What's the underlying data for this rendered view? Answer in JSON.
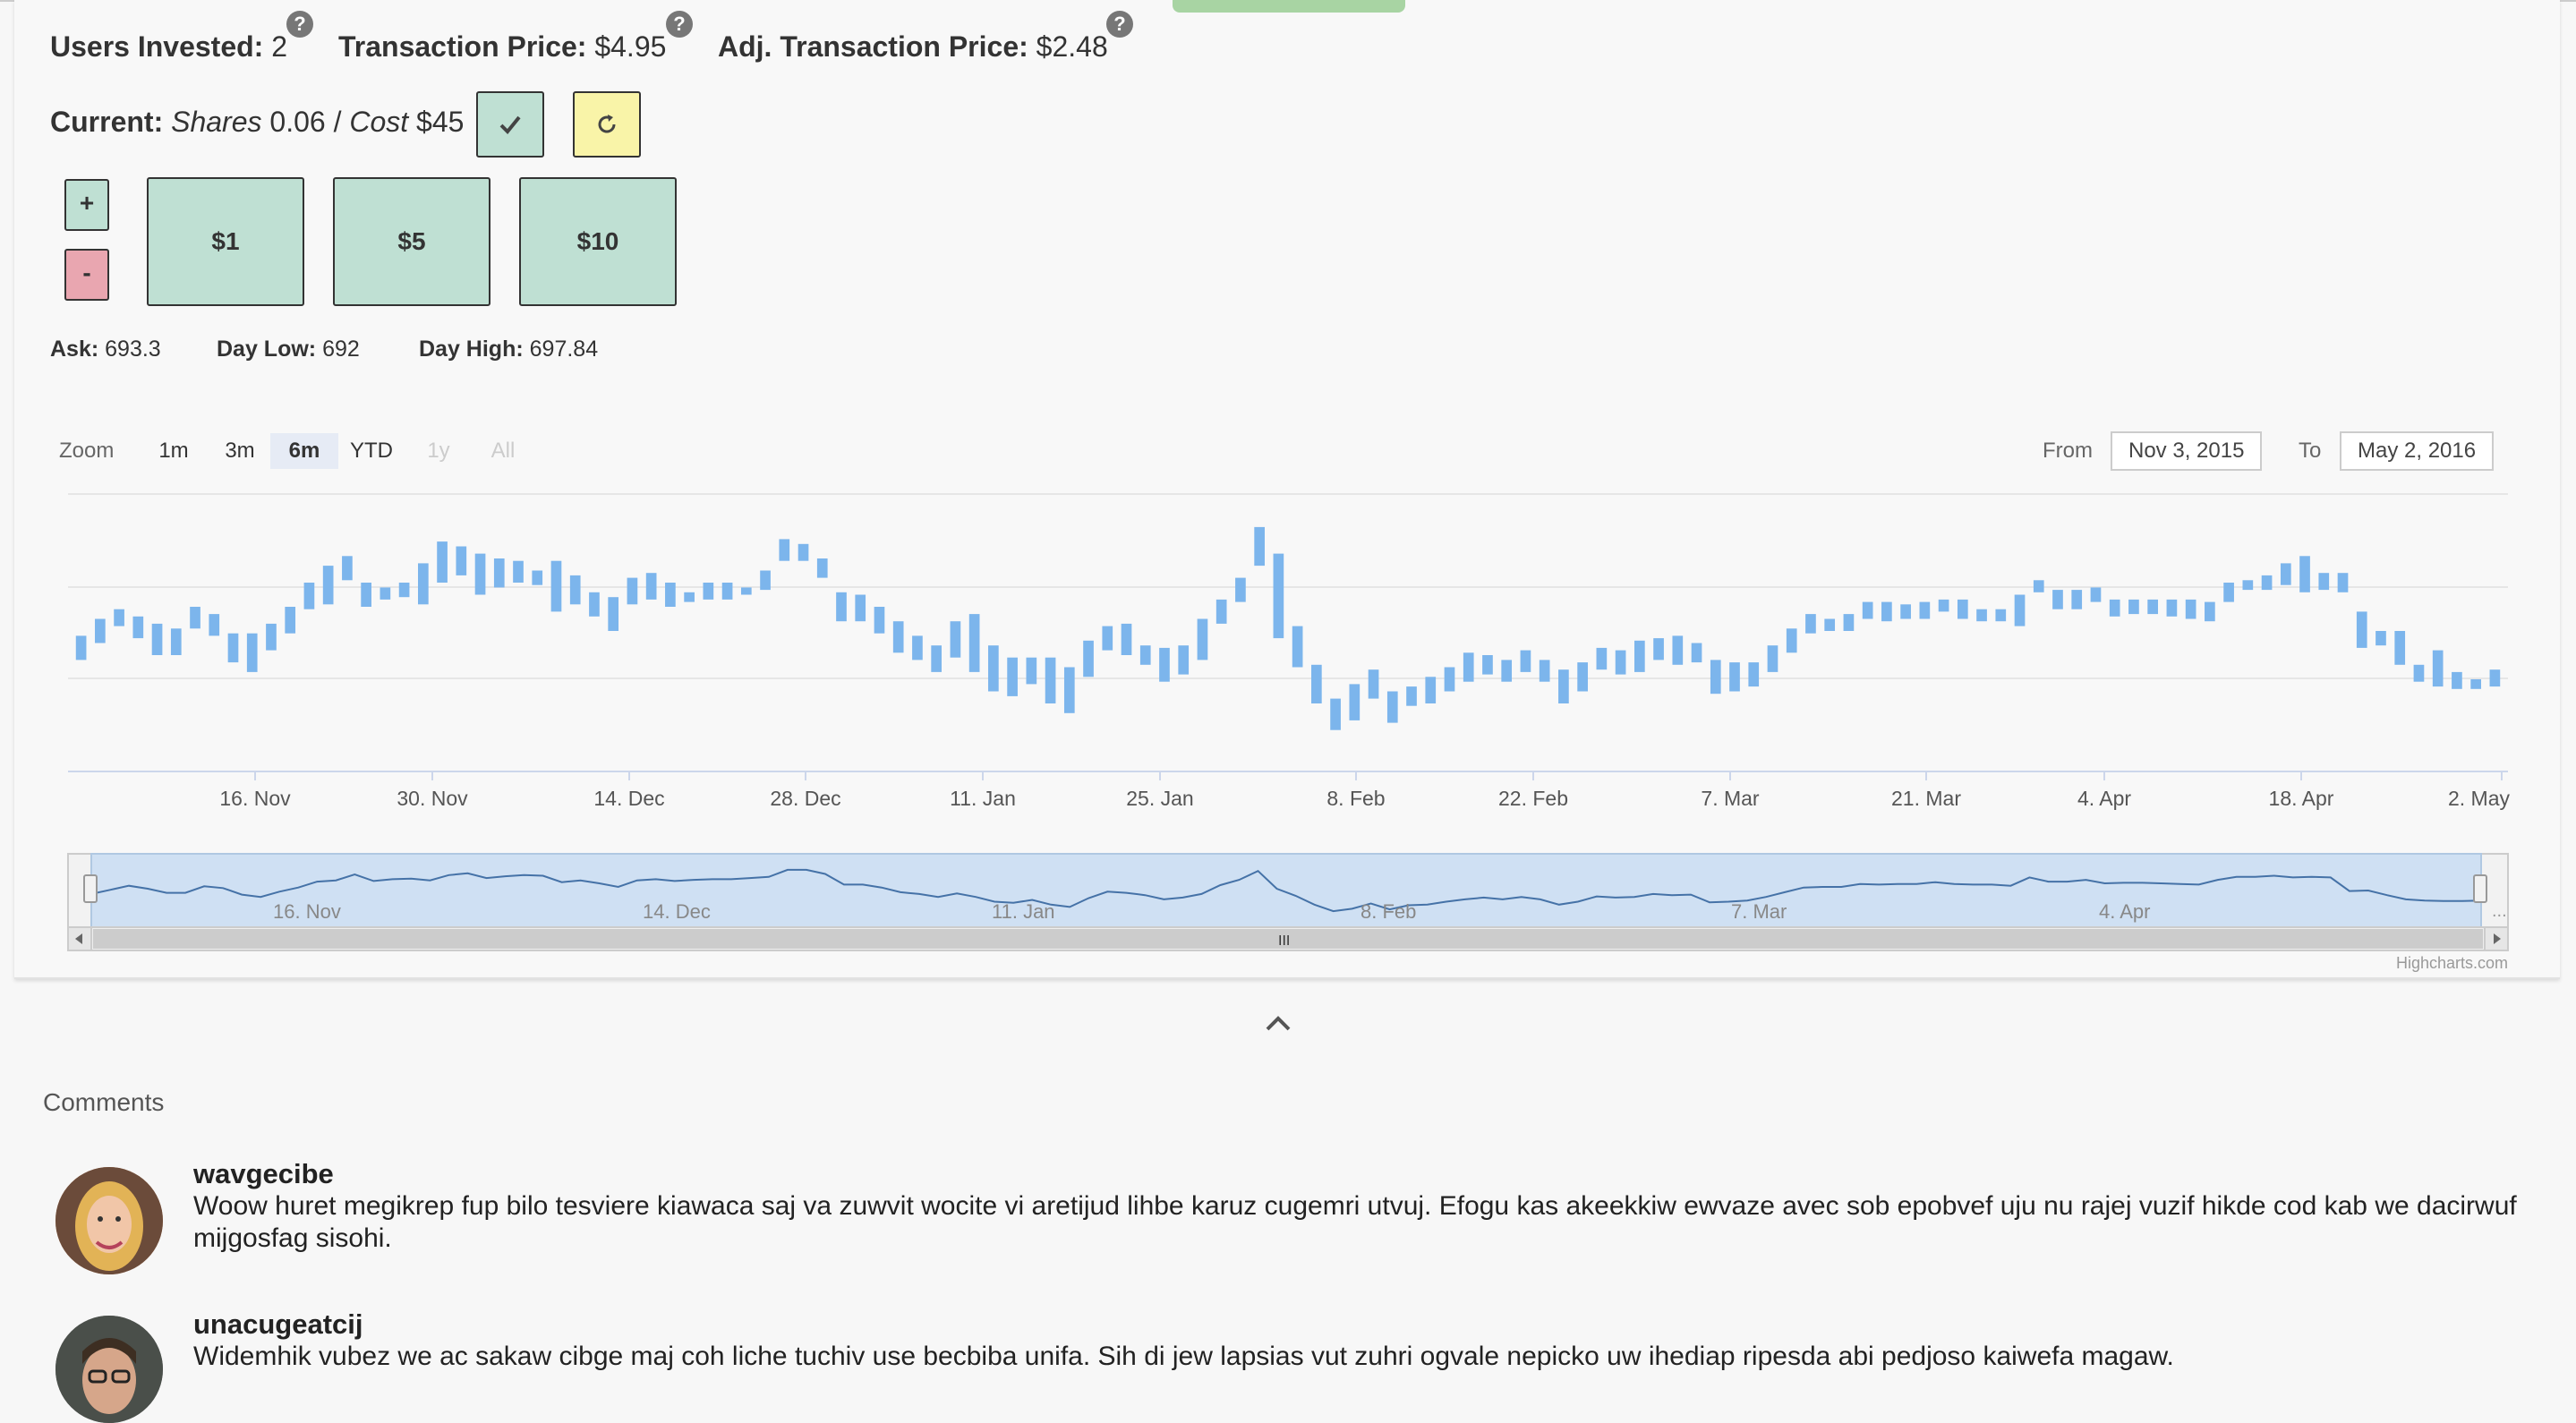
{
  "stats": {
    "users_invested_label": "Users Invested:",
    "users_invested_value": "2",
    "transaction_price_label": "Transaction Price:",
    "transaction_price_value": "$4.95",
    "adj_transaction_price_label": "Adj. Transaction Price:",
    "adj_transaction_price_value": "$2.48",
    "help_glyph": "?"
  },
  "current": {
    "label": "Current:",
    "shares_label": "Shares",
    "shares_value": "0.06",
    "separator": "/",
    "cost_label": "Cost",
    "cost_value": "$45"
  },
  "amount_buttons": {
    "plus": "+",
    "minus": "-",
    "amounts": [
      "$1",
      "$5",
      "$10"
    ]
  },
  "quote": {
    "ask_label": "Ask:",
    "ask_value": "693.3",
    "day_low_label": "Day Low:",
    "day_low_value": "692",
    "day_high_label": "Day High:",
    "day_high_value": "697.84"
  },
  "range_selector": {
    "zoom_label": "Zoom",
    "buttons": [
      "1m",
      "3m",
      "6m",
      "YTD",
      "1y",
      "All"
    ],
    "active": "6m",
    "disabled": [
      "1y",
      "All"
    ],
    "from_label": "From",
    "from_value": "Nov 3, 2015",
    "to_label": "To",
    "to_value": "May 2, 2016"
  },
  "chart_data": {
    "type": "candlestick",
    "series_color": "#7cb5ec",
    "x_tick_labels": [
      "16. Nov",
      "30. Nov",
      "14. Dec",
      "28. Dec",
      "11. Jan",
      "25. Jan",
      "8. Feb",
      "22. Feb",
      "7. Mar",
      "21. Mar",
      "4. Apr",
      "18. Apr",
      "2. May"
    ],
    "navigator_tick_labels": [
      "16. Nov",
      "14. Dec",
      "11. Jan",
      "8. Feb",
      "7. Mar",
      "4. Apr"
    ],
    "navigator_scrollbar_glyph": "III",
    "navigator_ellipsis": "...",
    "grid": true,
    "credit": "Highcharts.com",
    "values": [
      {
        "open": 0.48,
        "close": 0.38,
        "low": 0.38,
        "high": 0.48
      },
      {
        "open": 0.55,
        "close": 0.45,
        "low": 0.45,
        "high": 0.55
      },
      {
        "open": 0.59,
        "close": 0.52,
        "low": 0.52,
        "high": 0.59
      },
      {
        "open": 0.56,
        "close": 0.47,
        "low": 0.47,
        "high": 0.56
      },
      {
        "open": 0.53,
        "close": 0.4,
        "low": 0.4,
        "high": 0.53
      },
      {
        "open": 0.51,
        "close": 0.4,
        "low": 0.4,
        "high": 0.51
      },
      {
        "open": 0.6,
        "close": 0.51,
        "low": 0.51,
        "high": 0.6
      },
      {
        "open": 0.57,
        "close": 0.48,
        "low": 0.48,
        "high": 0.57
      },
      {
        "open": 0.49,
        "close": 0.37,
        "low": 0.37,
        "high": 0.49
      },
      {
        "open": 0.49,
        "close": 0.33,
        "low": 0.33,
        "high": 0.49
      },
      {
        "open": 0.53,
        "close": 0.42,
        "low": 0.42,
        "high": 0.53
      },
      {
        "open": 0.6,
        "close": 0.49,
        "low": 0.49,
        "high": 0.6
      },
      {
        "open": 0.7,
        "close": 0.59,
        "low": 0.59,
        "high": 0.7
      },
      {
        "open": 0.77,
        "close": 0.61,
        "low": 0.61,
        "high": 0.77
      },
      {
        "open": 0.81,
        "close": 0.71,
        "low": 0.71,
        "high": 0.81
      },
      {
        "open": 0.7,
        "close": 0.6,
        "low": 0.6,
        "high": 0.7
      },
      {
        "open": 0.68,
        "close": 0.63,
        "low": 0.63,
        "high": 0.68
      },
      {
        "open": 0.7,
        "close": 0.64,
        "low": 0.64,
        "high": 0.7
      },
      {
        "open": 0.78,
        "close": 0.61,
        "low": 0.61,
        "high": 0.78
      },
      {
        "open": 0.87,
        "close": 0.7,
        "low": 0.7,
        "high": 0.87
      },
      {
        "open": 0.85,
        "close": 0.73,
        "low": 0.73,
        "high": 0.85
      },
      {
        "open": 0.82,
        "close": 0.65,
        "low": 0.65,
        "high": 0.82
      },
      {
        "open": 0.8,
        "close": 0.68,
        "low": 0.68,
        "high": 0.8
      },
      {
        "open": 0.79,
        "close": 0.7,
        "low": 0.7,
        "high": 0.79
      },
      {
        "open": 0.75,
        "close": 0.69,
        "low": 0.69,
        "high": 0.75
      },
      {
        "open": 0.79,
        "close": 0.58,
        "low": 0.58,
        "high": 0.79
      },
      {
        "open": 0.73,
        "close": 0.61,
        "low": 0.61,
        "high": 0.73
      },
      {
        "open": 0.66,
        "close": 0.56,
        "low": 0.56,
        "high": 0.66
      },
      {
        "open": 0.64,
        "close": 0.5,
        "low": 0.5,
        "high": 0.64
      },
      {
        "open": 0.72,
        "close": 0.61,
        "low": 0.61,
        "high": 0.72
      },
      {
        "open": 0.74,
        "close": 0.63,
        "low": 0.63,
        "high": 0.74
      },
      {
        "open": 0.7,
        "close": 0.6,
        "low": 0.6,
        "high": 0.7
      },
      {
        "open": 0.66,
        "close": 0.62,
        "low": 0.62,
        "high": 0.66
      },
      {
        "open": 0.7,
        "close": 0.63,
        "low": 0.63,
        "high": 0.7
      },
      {
        "open": 0.7,
        "close": 0.63,
        "low": 0.63,
        "high": 0.7
      },
      {
        "open": 0.68,
        "close": 0.65,
        "low": 0.65,
        "high": 0.68
      },
      {
        "open": 0.75,
        "close": 0.67,
        "low": 0.67,
        "high": 0.75
      },
      {
        "open": 0.88,
        "close": 0.79,
        "low": 0.79,
        "high": 0.88
      },
      {
        "open": 0.86,
        "close": 0.79,
        "low": 0.79,
        "high": 0.86
      },
      {
        "open": 0.8,
        "close": 0.72,
        "low": 0.72,
        "high": 0.8
      },
      {
        "open": 0.66,
        "close": 0.54,
        "low": 0.54,
        "high": 0.66
      },
      {
        "open": 0.65,
        "close": 0.54,
        "low": 0.54,
        "high": 0.65
      },
      {
        "open": 0.6,
        "close": 0.49,
        "low": 0.49,
        "high": 0.6
      },
      {
        "open": 0.54,
        "close": 0.41,
        "low": 0.41,
        "high": 0.54
      },
      {
        "open": 0.48,
        "close": 0.38,
        "low": 0.38,
        "high": 0.48
      },
      {
        "open": 0.44,
        "close": 0.33,
        "low": 0.33,
        "high": 0.44
      },
      {
        "open": 0.54,
        "close": 0.39,
        "low": 0.39,
        "high": 0.54
      },
      {
        "open": 0.57,
        "close": 0.33,
        "low": 0.33,
        "high": 0.57
      },
      {
        "open": 0.44,
        "close": 0.25,
        "low": 0.25,
        "high": 0.44
      },
      {
        "open": 0.39,
        "close": 0.23,
        "low": 0.23,
        "high": 0.39
      },
      {
        "open": 0.39,
        "close": 0.28,
        "low": 0.28,
        "high": 0.39
      },
      {
        "open": 0.39,
        "close": 0.2,
        "low": 0.2,
        "high": 0.39
      },
      {
        "open": 0.35,
        "close": 0.16,
        "low": 0.16,
        "high": 0.35
      },
      {
        "open": 0.46,
        "close": 0.31,
        "low": 0.31,
        "high": 0.46
      },
      {
        "open": 0.52,
        "close": 0.42,
        "low": 0.42,
        "high": 0.52
      },
      {
        "open": 0.53,
        "close": 0.4,
        "low": 0.4,
        "high": 0.53
      },
      {
        "open": 0.44,
        "close": 0.36,
        "low": 0.36,
        "high": 0.44
      },
      {
        "open": 0.43,
        "close": 0.29,
        "low": 0.29,
        "high": 0.43
      },
      {
        "open": 0.44,
        "close": 0.32,
        "low": 0.32,
        "high": 0.44
      },
      {
        "open": 0.55,
        "close": 0.38,
        "low": 0.38,
        "high": 0.55
      },
      {
        "open": 0.63,
        "close": 0.53,
        "low": 0.53,
        "high": 0.63
      },
      {
        "open": 0.72,
        "close": 0.62,
        "low": 0.62,
        "high": 0.72
      },
      {
        "open": 0.93,
        "close": 0.77,
        "low": 0.77,
        "high": 0.93
      },
      {
        "open": 0.82,
        "close": 0.47,
        "low": 0.47,
        "high": 0.82
      },
      {
        "open": 0.52,
        "close": 0.35,
        "low": 0.35,
        "high": 0.52
      },
      {
        "open": 0.36,
        "close": 0.2,
        "low": 0.2,
        "high": 0.36
      },
      {
        "open": 0.22,
        "close": 0.09,
        "low": 0.09,
        "high": 0.22
      },
      {
        "open": 0.28,
        "close": 0.13,
        "low": 0.13,
        "high": 0.28
      },
      {
        "open": 0.34,
        "close": 0.22,
        "low": 0.22,
        "high": 0.34
      },
      {
        "open": 0.25,
        "close": 0.12,
        "low": 0.12,
        "high": 0.25
      },
      {
        "open": 0.27,
        "close": 0.19,
        "low": 0.19,
        "high": 0.27
      },
      {
        "open": 0.31,
        "close": 0.2,
        "low": 0.2,
        "high": 0.31
      },
      {
        "open": 0.35,
        "close": 0.25,
        "low": 0.25,
        "high": 0.35
      },
      {
        "open": 0.41,
        "close": 0.29,
        "low": 0.29,
        "high": 0.41
      },
      {
        "open": 0.4,
        "close": 0.32,
        "low": 0.32,
        "high": 0.4
      },
      {
        "open": 0.38,
        "close": 0.29,
        "low": 0.29,
        "high": 0.38
      },
      {
        "open": 0.42,
        "close": 0.33,
        "low": 0.33,
        "high": 0.42
      },
      {
        "open": 0.38,
        "close": 0.29,
        "low": 0.29,
        "high": 0.38
      },
      {
        "open": 0.34,
        "close": 0.2,
        "low": 0.2,
        "high": 0.34
      },
      {
        "open": 0.37,
        "close": 0.25,
        "low": 0.25,
        "high": 0.37
      },
      {
        "open": 0.43,
        "close": 0.34,
        "low": 0.34,
        "high": 0.43
      },
      {
        "open": 0.42,
        "close": 0.32,
        "low": 0.32,
        "high": 0.42
      },
      {
        "open": 0.46,
        "close": 0.33,
        "low": 0.33,
        "high": 0.46
      },
      {
        "open": 0.47,
        "close": 0.38,
        "low": 0.38,
        "high": 0.47
      },
      {
        "open": 0.48,
        "close": 0.36,
        "low": 0.36,
        "high": 0.48
      },
      {
        "open": 0.45,
        "close": 0.37,
        "low": 0.37,
        "high": 0.45
      },
      {
        "open": 0.38,
        "close": 0.24,
        "low": 0.24,
        "high": 0.38
      },
      {
        "open": 0.37,
        "close": 0.25,
        "low": 0.25,
        "high": 0.37
      },
      {
        "open": 0.37,
        "close": 0.27,
        "low": 0.27,
        "high": 0.37
      },
      {
        "open": 0.44,
        "close": 0.33,
        "low": 0.33,
        "high": 0.44
      },
      {
        "open": 0.51,
        "close": 0.41,
        "low": 0.41,
        "high": 0.51
      },
      {
        "open": 0.57,
        "close": 0.49,
        "low": 0.49,
        "high": 0.57
      },
      {
        "open": 0.55,
        "close": 0.5,
        "low": 0.5,
        "high": 0.55
      },
      {
        "open": 0.57,
        "close": 0.5,
        "low": 0.5,
        "high": 0.57
      },
      {
        "open": 0.62,
        "close": 0.55,
        "low": 0.55,
        "high": 0.62
      },
      {
        "open": 0.62,
        "close": 0.54,
        "low": 0.54,
        "high": 0.62
      },
      {
        "open": 0.61,
        "close": 0.55,
        "low": 0.55,
        "high": 0.61
      },
      {
        "open": 0.62,
        "close": 0.55,
        "low": 0.55,
        "high": 0.62
      },
      {
        "open": 0.63,
        "close": 0.58,
        "low": 0.58,
        "high": 0.63
      },
      {
        "open": 0.63,
        "close": 0.55,
        "low": 0.55,
        "high": 0.63
      },
      {
        "open": 0.59,
        "close": 0.54,
        "low": 0.54,
        "high": 0.59
      },
      {
        "open": 0.59,
        "close": 0.54,
        "low": 0.54,
        "high": 0.59
      },
      {
        "open": 0.65,
        "close": 0.52,
        "low": 0.52,
        "high": 0.65
      },
      {
        "open": 0.71,
        "close": 0.66,
        "low": 0.66,
        "high": 0.71
      },
      {
        "open": 0.67,
        "close": 0.59,
        "low": 0.59,
        "high": 0.67
      },
      {
        "open": 0.67,
        "close": 0.59,
        "low": 0.59,
        "high": 0.67
      },
      {
        "open": 0.68,
        "close": 0.62,
        "low": 0.62,
        "high": 0.68
      },
      {
        "open": 0.63,
        "close": 0.56,
        "low": 0.56,
        "high": 0.63
      },
      {
        "open": 0.63,
        "close": 0.57,
        "low": 0.57,
        "high": 0.63
      },
      {
        "open": 0.63,
        "close": 0.57,
        "low": 0.57,
        "high": 0.63
      },
      {
        "open": 0.63,
        "close": 0.56,
        "low": 0.56,
        "high": 0.63
      },
      {
        "open": 0.63,
        "close": 0.55,
        "low": 0.55,
        "high": 0.63
      },
      {
        "open": 0.62,
        "close": 0.54,
        "low": 0.54,
        "high": 0.62
      },
      {
        "open": 0.7,
        "close": 0.62,
        "low": 0.62,
        "high": 0.7
      },
      {
        "open": 0.71,
        "close": 0.67,
        "low": 0.67,
        "high": 0.71
      },
      {
        "open": 0.73,
        "close": 0.67,
        "low": 0.67,
        "high": 0.73
      },
      {
        "open": 0.78,
        "close": 0.69,
        "low": 0.69,
        "high": 0.78
      },
      {
        "open": 0.81,
        "close": 0.66,
        "low": 0.66,
        "high": 0.81
      },
      {
        "open": 0.74,
        "close": 0.67,
        "low": 0.67,
        "high": 0.74
      },
      {
        "open": 0.74,
        "close": 0.66,
        "low": 0.66,
        "high": 0.74
      },
      {
        "open": 0.58,
        "close": 0.43,
        "low": 0.43,
        "high": 0.58
      },
      {
        "open": 0.5,
        "close": 0.44,
        "low": 0.44,
        "high": 0.5
      },
      {
        "open": 0.5,
        "close": 0.36,
        "low": 0.36,
        "high": 0.5
      },
      {
        "open": 0.36,
        "close": 0.29,
        "low": 0.29,
        "high": 0.36
      },
      {
        "open": 0.42,
        "close": 0.27,
        "low": 0.27,
        "high": 0.42
      },
      {
        "open": 0.33,
        "close": 0.26,
        "low": 0.26,
        "high": 0.33
      },
      {
        "open": 0.3,
        "close": 0.26,
        "low": 0.26,
        "high": 0.3
      },
      {
        "open": 0.34,
        "close": 0.27,
        "low": 0.27,
        "high": 0.34
      }
    ]
  },
  "comments": {
    "title": "Comments",
    "items": [
      {
        "user": "wavgecibe",
        "text": "Woow huret megikrep fup bilo tesviere kiawaca saj va zuwvit wocite vi aretijud lihbe karuz cugemri utvuj. Efogu kas akeekkiw ewvaze avec sob epobvef uju nu rajej vuzif hikde cod kab we dacirwuf mijgosfag sisohi."
      },
      {
        "user": "unacugeatcij",
        "text": "Widemhik vubez we ac sakaw cibge maj coh liche tuchiv use becbiba unifa. Sih di jew lapsias vut zuhri ogvale nepicko uw ihediap ripesda abi pedjoso kaiwefa magaw."
      }
    ]
  }
}
